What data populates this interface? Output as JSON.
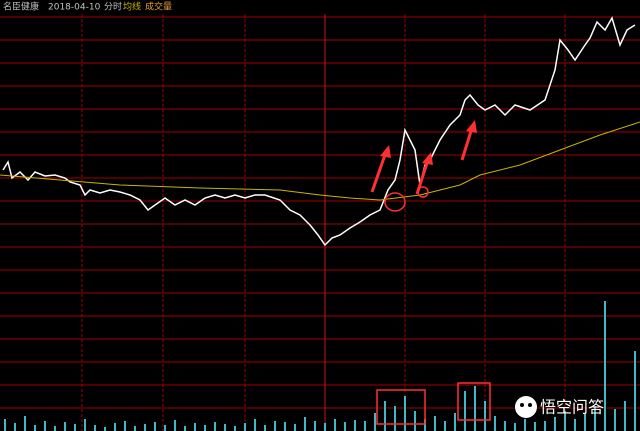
{
  "chart_data": [
    {
      "type": "line",
      "title": "名臣健康",
      "date": "2018-04-10",
      "period": "分时",
      "xlim": [
        0,
        640
      ],
      "ylim": [
        0,
        280
      ],
      "series": [
        {
          "color": "#ffffff",
          "x": [
            3,
            8,
            12,
            20,
            28,
            35,
            45,
            55,
            65,
            70,
            80,
            85,
            90,
            100,
            110,
            120,
            130,
            140,
            148,
            155,
            165,
            175,
            185,
            195,
            205,
            215,
            225,
            235,
            245,
            255,
            265,
            280,
            290,
            300,
            310,
            318,
            325,
            332,
            340,
            350,
            360,
            370,
            380,
            388,
            395,
            400,
            405,
            410,
            415,
            420,
            425,
            430,
            440,
            450,
            460,
            465,
            470,
            478,
            485,
            495,
            505,
            515,
            530,
            545,
            555,
            560,
            568,
            575,
            585,
            590,
            597,
            605,
            612,
            620,
            627,
            635
          ],
          "values": [
            120,
            128,
            112,
            118,
            110,
            118,
            114,
            115,
            112,
            108,
            105,
            95,
            100,
            97,
            100,
            98,
            95,
            90,
            80,
            85,
            92,
            85,
            90,
            85,
            92,
            95,
            92,
            95,
            92,
            95,
            95,
            90,
            80,
            75,
            65,
            55,
            45,
            52,
            55,
            62,
            68,
            75,
            80,
            100,
            110,
            130,
            160,
            150,
            140,
            105,
            125,
            130,
            150,
            165,
            175,
            190,
            195,
            185,
            180,
            185,
            175,
            185,
            180,
            190,
            220,
            250,
            240,
            230,
            245,
            252,
            268,
            260,
            272,
            245,
            260,
            265
          ]
        },
        {
          "name": "均线",
          "color": "#c8b400",
          "x": [
            0,
            60,
            120,
            200,
            280,
            320,
            350,
            380,
            420,
            460,
            480,
            520,
            560,
            600,
            640
          ],
          "values": [
            115,
            110,
            105,
            102,
            100,
            95,
            92,
            90,
            95,
            105,
            115,
            125,
            140,
            155,
            168
          ]
        }
      ]
    },
    {
      "type": "bar",
      "title": "成交量",
      "title_color": "#e8a030",
      "color": "#3fb8c8",
      "xlim": [
        0,
        640
      ],
      "ylim": [
        0,
        140
      ],
      "x": [
        5,
        15,
        25,
        35,
        45,
        55,
        65,
        75,
        85,
        95,
        105,
        115,
        125,
        135,
        145,
        155,
        165,
        175,
        185,
        195,
        205,
        215,
        225,
        235,
        245,
        255,
        265,
        275,
        285,
        295,
        305,
        315,
        325,
        335,
        345,
        355,
        365,
        375,
        385,
        395,
        405,
        415,
        425,
        435,
        445,
        455,
        465,
        475,
        485,
        495,
        505,
        515,
        525,
        535,
        545,
        555,
        565,
        575,
        585,
        595,
        605,
        615,
        625,
        635
      ],
      "values": [
        12,
        8,
        15,
        6,
        10,
        5,
        9,
        7,
        12,
        6,
        4,
        8,
        10,
        5,
        7,
        9,
        6,
        11,
        5,
        8,
        6,
        9,
        7,
        5,
        8,
        12,
        6,
        10,
        9,
        7,
        14,
        10,
        8,
        12,
        9,
        11,
        10,
        18,
        30,
        25,
        35,
        20,
        12,
        15,
        10,
        18,
        40,
        45,
        30,
        15,
        10,
        8,
        12,
        9,
        10,
        14,
        20,
        12,
        18,
        25,
        130,
        22,
        30,
        80
      ]
    }
  ],
  "watermark": "悟空问答"
}
